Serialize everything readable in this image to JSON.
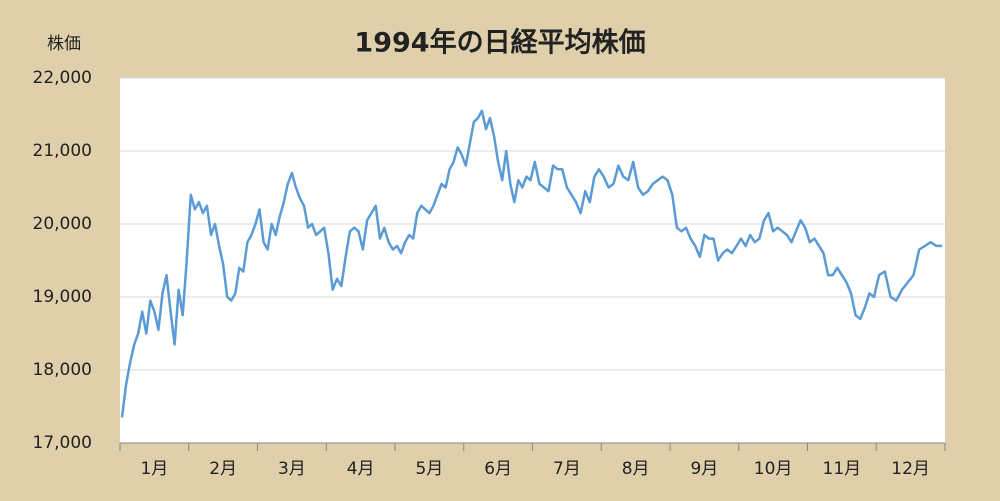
{
  "chart_data": {
    "type": "line",
    "title": "1994年の日経平均株価",
    "ylabel": "株価",
    "categories": [
      "1月",
      "2月",
      "3月",
      "4月",
      "5月",
      "6月",
      "7月",
      "8月",
      "9月",
      "10月",
      "11月",
      "12月"
    ],
    "values": [
      [
        17350,
        17800,
        18100,
        18350,
        18500,
        18800,
        18500,
        18950,
        18800,
        18550,
        19050,
        19300,
        18800,
        18350,
        19100,
        18750,
        19500
      ],
      [
        20400,
        20200,
        20300,
        20150,
        20250,
        19850,
        20000,
        19700,
        19450,
        19000,
        18950,
        19050,
        19400,
        19350,
        19750,
        19850,
        20000
      ],
      [
        20200,
        19750,
        19650,
        20000,
        19850,
        20100,
        20300,
        20550,
        20700,
        20500,
        20350,
        20250,
        19950,
        20000,
        19850,
        19900,
        19950
      ],
      [
        19600,
        19100,
        19250,
        19150,
        19550,
        19900,
        19950,
        19900,
        19650,
        20050,
        20150,
        20250,
        19800,
        19950,
        19750,
        19650
      ],
      [
        19700,
        19600,
        19750,
        19850,
        19800,
        20150,
        20250,
        20200,
        20150,
        20250,
        20400,
        20550,
        20500,
        20750,
        20850,
        21050,
        20950
      ],
      [
        20800,
        21100,
        21400,
        21450,
        21550,
        21300,
        21450,
        21200,
        20850,
        20600,
        21000,
        20550,
        20300,
        20600,
        20500,
        20650,
        20600
      ],
      [
        20850,
        20550,
        20500,
        20450,
        20800,
        20750,
        20750,
        20500,
        20400,
        20300,
        20150,
        20450,
        20300,
        20650,
        20750
      ],
      [
        20650,
        20500,
        20550,
        20800,
        20650,
        20600,
        20850,
        20500,
        20400,
        20450,
        20550,
        20600,
        20650,
        20600
      ],
      [
        20400,
        19950,
        19900,
        19950,
        19800,
        19700,
        19550,
        19850,
        19800,
        19800,
        19500,
        19600,
        19650,
        19600,
        19700
      ],
      [
        19800,
        19700,
        19850,
        19750,
        19800,
        20050,
        20150,
        19900,
        19950,
        19900,
        19850,
        19750,
        19900,
        20050,
        19950
      ],
      [
        19750,
        19800,
        19700,
        19600,
        19300,
        19300,
        19400,
        19300,
        19200,
        19050,
        18750,
        18700,
        18850,
        19050,
        19000
      ],
      [
        19300,
        19350,
        19000,
        18950,
        19100,
        19200,
        19300,
        19650,
        19700,
        19750,
        19700,
        19700
      ]
    ],
    "color": "#5b9bd5",
    "grid": true,
    "ylim": [
      17000,
      22000
    ],
    "yticks": [
      {
        "value": 17000,
        "label": "17,000"
      },
      {
        "value": 18000,
        "label": "18,000"
      },
      {
        "value": 19000,
        "label": "19,000"
      },
      {
        "value": 20000,
        "label": "20,000"
      },
      {
        "value": 21000,
        "label": "21,000"
      },
      {
        "value": 22000,
        "label": "22,000"
      }
    ]
  }
}
